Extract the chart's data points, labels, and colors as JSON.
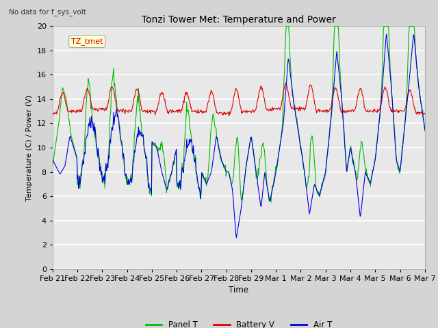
{
  "title": "Tonzi Tower Met: Temperature and Power",
  "subtitle": "No data for f_sys_volt",
  "ylabel": "Temperature (C) / Power (V)",
  "xlabel": "Time",
  "ylim": [
    0,
    20
  ],
  "yticks": [
    0,
    2,
    4,
    6,
    8,
    10,
    12,
    14,
    16,
    18,
    20
  ],
  "xtick_labels": [
    "Feb 21",
    "Feb 22",
    "Feb 23",
    "Feb 24",
    "Feb 25",
    "Feb 26",
    "Feb 27",
    "Feb 28",
    "Feb 29",
    "Mar 1",
    "Mar 2",
    "Mar 3",
    "Mar 4",
    "Mar 5",
    "Mar 6",
    "Mar 7"
  ],
  "annotation_label": "TZ_tmet",
  "legend_entries": [
    "Panel T",
    "Battery V",
    "Air T"
  ],
  "panel_color": "#00bb00",
  "battery_color": "#dd0000",
  "air_color": "#0000dd",
  "fig_bg_color": "#d4d4d4",
  "plot_bg_color": "#e8e8e8"
}
